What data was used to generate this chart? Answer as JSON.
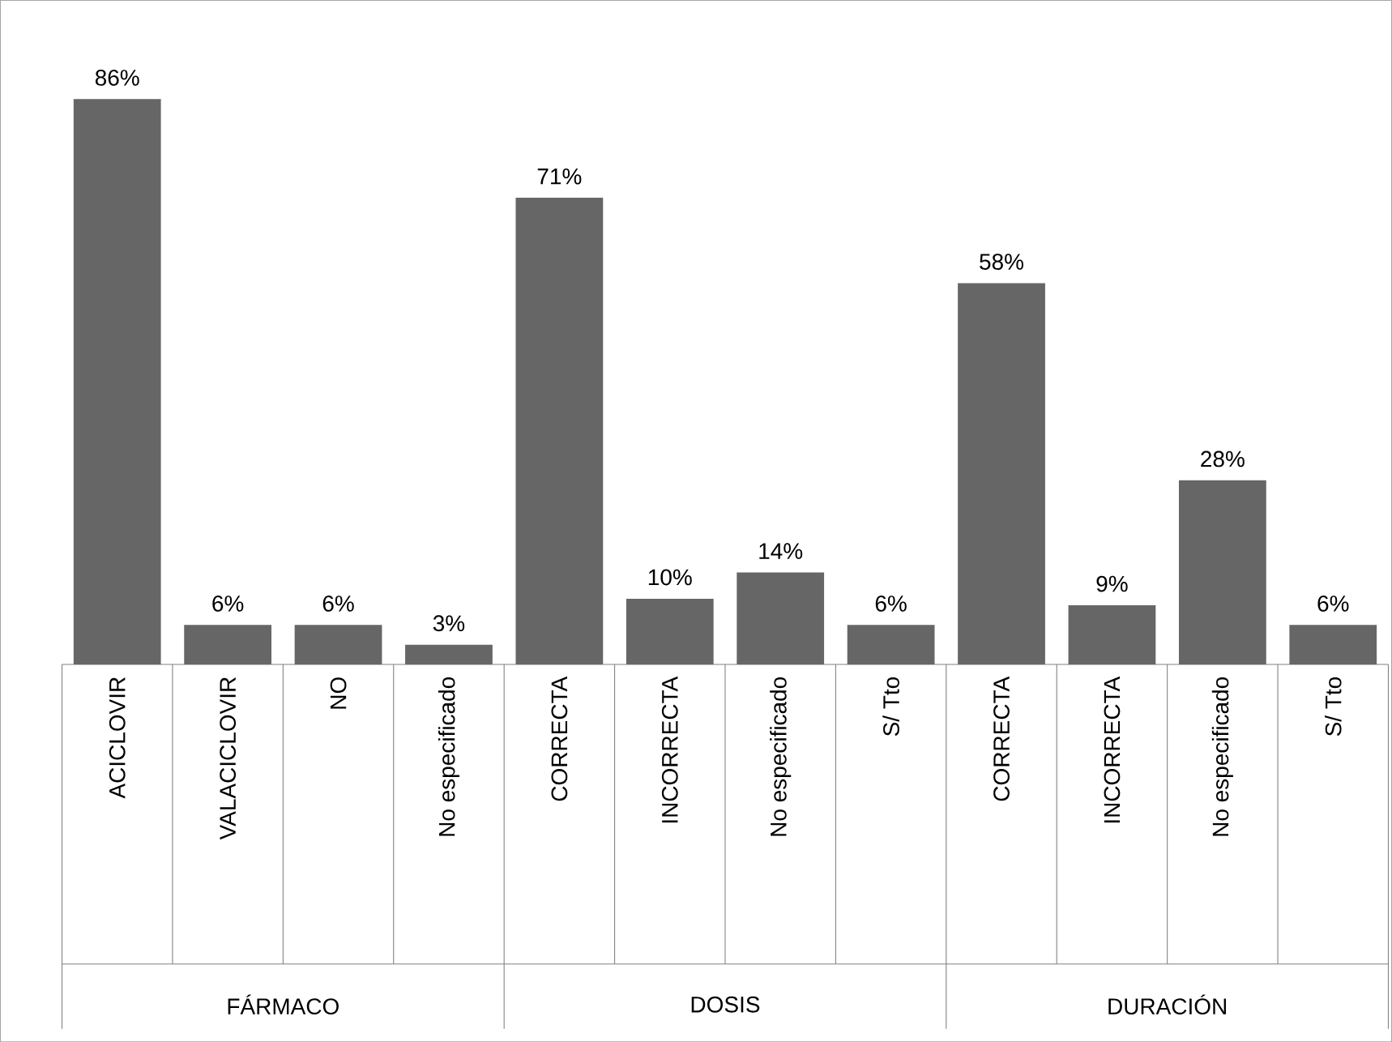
{
  "chart_data": {
    "type": "bar",
    "categories": [
      "ACICLOVIR",
      "VALACICLOVIR",
      "NO",
      "No especificado",
      "CORRECTA",
      "INCORRECTA",
      "No especificado",
      "S/ Tto",
      "CORRECTA",
      "INCORRECTA",
      "No especificado",
      "S/ Tto"
    ],
    "values": [
      86,
      6,
      6,
      3,
      71,
      10,
      14,
      6,
      58,
      9,
      28,
      6
    ],
    "value_labels": [
      "86%",
      "6%",
      "6%",
      "3%",
      "71%",
      "10%",
      "14%",
      "6%",
      "58%",
      "9%",
      "28%",
      "6%"
    ],
    "color": "#666666",
    "annotations": [
      "FÁRMACO",
      "DOSIS",
      "DURACIÓN"
    ]
  }
}
